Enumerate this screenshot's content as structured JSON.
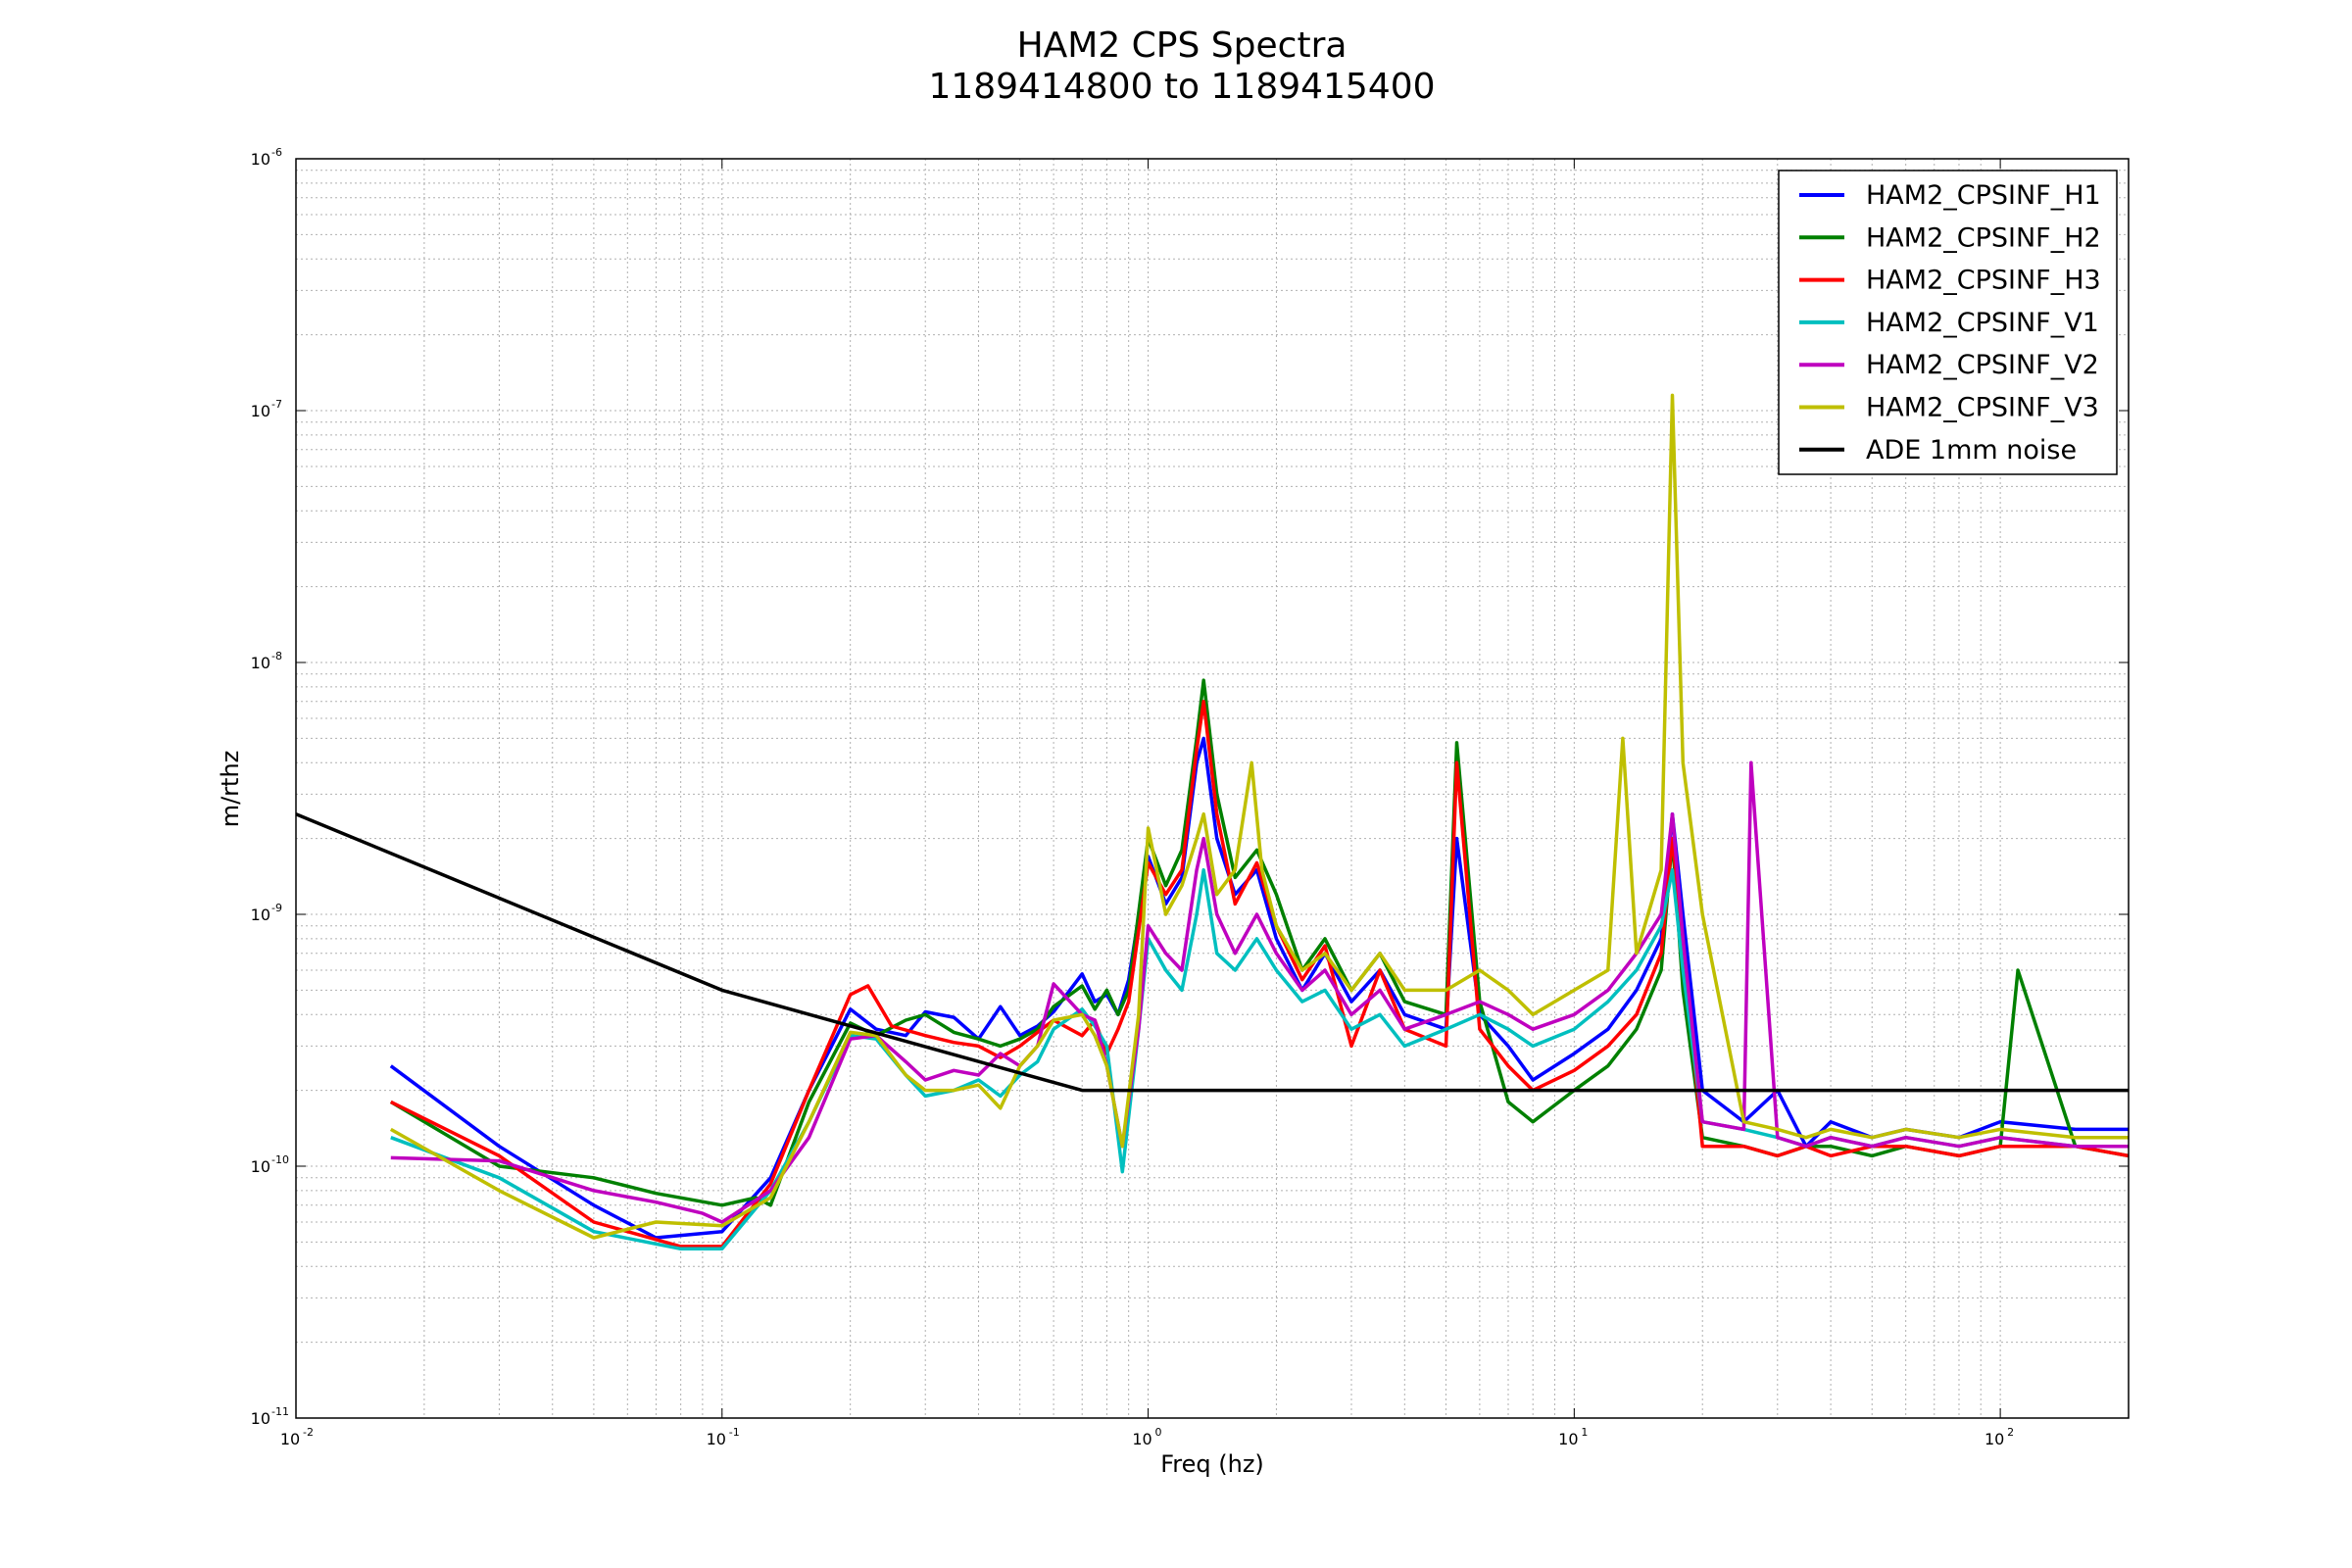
{
  "chart_data": {
    "type": "line",
    "title": "HAM2 CPS Spectra",
    "subtitle": "1189414800 to 1189415400",
    "xlabel": "Freq (hz)",
    "ylabel": "m/rthz",
    "xscale": "log",
    "yscale": "log",
    "xlim": [
      0.01,
      200
    ],
    "ylim": [
      1e-11,
      1e-06
    ],
    "grid": true,
    "legend_position": "top-right",
    "x_ticks": [
      {
        "base": "10",
        "exp": "-2",
        "value": 0.01
      },
      {
        "base": "10",
        "exp": "-1",
        "value": 0.1
      },
      {
        "base": "10",
        "exp": "0",
        "value": 1
      },
      {
        "base": "10",
        "exp": "1",
        "value": 10
      },
      {
        "base": "10",
        "exp": "2",
        "value": 100
      }
    ],
    "y_ticks": [
      {
        "base": "10",
        "exp": "-11",
        "value": 1e-11
      },
      {
        "base": "10",
        "exp": "-10",
        "value": 1e-10
      },
      {
        "base": "10",
        "exp": "-9",
        "value": 1e-09
      },
      {
        "base": "10",
        "exp": "-8",
        "value": 1e-08
      },
      {
        "base": "10",
        "exp": "-7",
        "value": 1e-07
      },
      {
        "base": "10",
        "exp": "-6",
        "value": 1e-06
      }
    ],
    "series": [
      {
        "name": "HAM2_CPSINF_H1",
        "color": "#0000ff",
        "x": [
          0.0167,
          0.03,
          0.05,
          0.07,
          0.1,
          0.13,
          0.16,
          0.2,
          0.23,
          0.27,
          0.3,
          0.35,
          0.4,
          0.45,
          0.5,
          0.55,
          0.6,
          0.7,
          0.75,
          0.8,
          0.85,
          0.9,
          1.0,
          1.1,
          1.2,
          1.3,
          1.35,
          1.45,
          1.6,
          1.8,
          2.0,
          2.3,
          2.6,
          3.0,
          3.5,
          4.0,
          5.0,
          5.3,
          6.0,
          7.0,
          8.0,
          10,
          12,
          14,
          16,
          17,
          18,
          20,
          25,
          30,
          35,
          40,
          50,
          60,
          80,
          100,
          150,
          200
        ],
        "y": [
          2.5e-10,
          1.2e-10,
          7e-11,
          5.2e-11,
          5.5e-11,
          9e-11,
          2e-10,
          4.2e-10,
          3.5e-10,
          3.3e-10,
          4.1e-10,
          3.9e-10,
          3.2e-10,
          4.3e-10,
          3.3e-10,
          3.6e-10,
          4.1e-10,
          5.8e-10,
          4.5e-10,
          4.8e-10,
          4e-10,
          5.5e-10,
          1.7e-09,
          1.1e-09,
          1.4e-09,
          4e-09,
          5e-09,
          2e-09,
          1.2e-09,
          1.5e-09,
          8e-10,
          5e-10,
          7e-10,
          4.5e-10,
          6e-10,
          4e-10,
          3.5e-10,
          2e-09,
          4e-10,
          3e-10,
          2.2e-10,
          2.8e-10,
          3.5e-10,
          5e-10,
          8e-10,
          2.5e-09,
          1e-09,
          2e-10,
          1.5e-10,
          2e-10,
          1.2e-10,
          1.5e-10,
          1.3e-10,
          1.4e-10,
          1.3e-10,
          1.5e-10,
          1.4e-10,
          1.4e-10
        ]
      },
      {
        "name": "HAM2_CPSINF_H2",
        "color": "#008000",
        "x": [
          0.0167,
          0.03,
          0.05,
          0.07,
          0.1,
          0.12,
          0.13,
          0.16,
          0.2,
          0.23,
          0.27,
          0.3,
          0.35,
          0.4,
          0.45,
          0.5,
          0.55,
          0.6,
          0.7,
          0.75,
          0.8,
          0.85,
          0.9,
          1.0,
          1.1,
          1.2,
          1.3,
          1.35,
          1.45,
          1.6,
          1.8,
          2.0,
          2.3,
          2.6,
          3.0,
          3.5,
          4.0,
          5.0,
          5.3,
          6.0,
          7.0,
          8.0,
          10,
          12,
          14,
          16,
          17,
          18,
          20,
          25,
          30,
          35,
          40,
          50,
          60,
          80,
          100,
          110,
          150,
          200
        ],
        "y": [
          1.8e-10,
          1e-10,
          9e-11,
          7.8e-11,
          7e-11,
          7.5e-11,
          7e-11,
          1.8e-10,
          3.7e-10,
          3.3e-10,
          3.8e-10,
          4e-10,
          3.4e-10,
          3.2e-10,
          3e-10,
          3.2e-10,
          3.5e-10,
          4.3e-10,
          5.2e-10,
          4.2e-10,
          5e-10,
          4e-10,
          5e-10,
          2e-09,
          1.3e-09,
          1.8e-09,
          5e-09,
          8.5e-09,
          3e-09,
          1.4e-09,
          1.8e-09,
          1.2e-09,
          6e-10,
          8e-10,
          5e-10,
          7e-10,
          4.5e-10,
          4e-10,
          4.8e-09,
          4.5e-10,
          1.8e-10,
          1.5e-10,
          2e-10,
          2.5e-10,
          3.5e-10,
          6e-10,
          2e-09,
          5e-10,
          1.3e-10,
          1.2e-10,
          1.1e-10,
          1.2e-10,
          1.2e-10,
          1.1e-10,
          1.2e-10,
          1.1e-10,
          1.2e-10,
          6e-10,
          1.2e-10,
          1.1e-10
        ]
      },
      {
        "name": "HAM2_CPSINF_H3",
        "color": "#ff0000",
        "x": [
          0.0167,
          0.03,
          0.05,
          0.08,
          0.1,
          0.13,
          0.16,
          0.2,
          0.22,
          0.25,
          0.3,
          0.35,
          0.4,
          0.45,
          0.5,
          0.55,
          0.6,
          0.7,
          0.75,
          0.8,
          0.85,
          0.9,
          1.0,
          1.1,
          1.2,
          1.3,
          1.35,
          1.45,
          1.6,
          1.8,
          2.0,
          2.3,
          2.6,
          3.0,
          3.5,
          4.0,
          5.0,
          5.3,
          6.0,
          7.0,
          8.0,
          10,
          12,
          14,
          16,
          17,
          18,
          20,
          25,
          30,
          35,
          40,
          50,
          60,
          80,
          100,
          150,
          200
        ],
        "y": [
          1.8e-10,
          1.1e-10,
          6e-11,
          4.8e-11,
          4.8e-11,
          8.5e-11,
          2e-10,
          4.8e-10,
          5.2e-10,
          3.6e-10,
          3.3e-10,
          3.1e-10,
          3e-10,
          2.7e-10,
          3e-10,
          3.4e-10,
          3.8e-10,
          3.3e-10,
          3.8e-10,
          2.8e-10,
          3.5e-10,
          4.5e-10,
          1.6e-09,
          1.2e-09,
          1.5e-09,
          4.5e-09,
          7e-09,
          2.5e-09,
          1.1e-09,
          1.6e-09,
          9e-10,
          5.5e-10,
          7.5e-10,
          3e-10,
          6e-10,
          3.5e-10,
          3e-10,
          4e-09,
          3.5e-10,
          2.5e-10,
          2e-10,
          2.4e-10,
          3e-10,
          4e-10,
          7e-10,
          2e-09,
          8e-10,
          1.2e-10,
          1.2e-10,
          1.1e-10,
          1.2e-10,
          1.1e-10,
          1.2e-10,
          1.2e-10,
          1.1e-10,
          1.2e-10,
          1.2e-10,
          1.1e-10
        ]
      },
      {
        "name": "HAM2_CPSINF_V1",
        "color": "#00bfbf",
        "x": [
          0.0167,
          0.03,
          0.05,
          0.08,
          0.1,
          0.13,
          0.16,
          0.2,
          0.23,
          0.27,
          0.3,
          0.35,
          0.4,
          0.45,
          0.5,
          0.55,
          0.6,
          0.7,
          0.75,
          0.8,
          0.87,
          0.95,
          1.0,
          1.1,
          1.2,
          1.3,
          1.35,
          1.45,
          1.6,
          1.8,
          2.0,
          2.3,
          2.6,
          3.0,
          3.5,
          4.0,
          5.0,
          6.0,
          7.0,
          8.0,
          10,
          12,
          14,
          16,
          17,
          18,
          20,
          25,
          30,
          35,
          40,
          50,
          60,
          80,
          100,
          150,
          200
        ],
        "y": [
          1.3e-10,
          9e-11,
          5.5e-11,
          4.7e-11,
          4.7e-11,
          8e-11,
          1.5e-10,
          3.3e-10,
          3.2e-10,
          2.3e-10,
          1.9e-10,
          2e-10,
          2.2e-10,
          1.9e-10,
          2.3e-10,
          2.6e-10,
          3.5e-10,
          4.2e-10,
          3.6e-10,
          3e-10,
          9.5e-11,
          3.5e-10,
          8e-10,
          6e-10,
          5e-10,
          1e-09,
          1.5e-09,
          7e-10,
          6e-10,
          8e-10,
          6e-10,
          4.5e-10,
          5e-10,
          3.5e-10,
          4e-10,
          3e-10,
          3.5e-10,
          4e-10,
          3.5e-10,
          3e-10,
          3.5e-10,
          4.5e-10,
          6e-10,
          9e-10,
          1.5e-09,
          6e-10,
          1.5e-10,
          1.4e-10,
          1.3e-10,
          1.2e-10,
          1.3e-10,
          1.2e-10,
          1.3e-10,
          1.2e-10,
          1.3e-10,
          1.2e-10,
          1.2e-10
        ]
      },
      {
        "name": "HAM2_CPSINF_V2",
        "color": "#bf00bf",
        "x": [
          0.0167,
          0.03,
          0.05,
          0.07,
          0.09,
          0.1,
          0.13,
          0.16,
          0.2,
          0.23,
          0.27,
          0.3,
          0.35,
          0.4,
          0.45,
          0.5,
          0.55,
          0.6,
          0.7,
          0.75,
          0.8,
          0.87,
          0.95,
          1.0,
          1.1,
          1.2,
          1.3,
          1.35,
          1.45,
          1.6,
          1.8,
          2.0,
          2.3,
          2.6,
          3.0,
          3.5,
          4.0,
          5.0,
          6.0,
          7.0,
          8.0,
          10,
          12,
          14,
          16,
          17,
          18,
          20,
          25,
          26,
          30,
          35,
          40,
          50,
          60,
          80,
          100,
          150,
          200
        ],
        "y": [
          1.08e-10,
          1.05e-10,
          8e-11,
          7.2e-11,
          6.5e-11,
          6e-11,
          8e-11,
          1.3e-10,
          3.2e-10,
          3.3e-10,
          2.6e-10,
          2.2e-10,
          2.4e-10,
          2.3e-10,
          2.8e-10,
          2.5e-10,
          3e-10,
          5.3e-10,
          4e-10,
          3.8e-10,
          2.5e-10,
          1.2e-10,
          3.5e-10,
          9e-10,
          7e-10,
          6e-10,
          1.5e-09,
          2e-09,
          1e-09,
          7e-10,
          1e-09,
          7e-10,
          5e-10,
          6e-10,
          4e-10,
          5e-10,
          3.5e-10,
          4e-10,
          4.5e-10,
          4e-10,
          3.5e-10,
          4e-10,
          5e-10,
          7e-10,
          1e-09,
          2.5e-09,
          8e-10,
          1.5e-10,
          1.4e-10,
          4e-09,
          1.3e-10,
          1.2e-10,
          1.3e-10,
          1.2e-10,
          1.3e-10,
          1.2e-10,
          1.3e-10,
          1.2e-10,
          1.2e-10
        ]
      },
      {
        "name": "HAM2_CPSINF_V3",
        "color": "#bfbf00",
        "x": [
          0.0167,
          0.03,
          0.05,
          0.07,
          0.1,
          0.13,
          0.16,
          0.2,
          0.23,
          0.27,
          0.3,
          0.35,
          0.4,
          0.45,
          0.5,
          0.55,
          0.6,
          0.7,
          0.75,
          0.8,
          0.87,
          0.95,
          1.0,
          1.1,
          1.2,
          1.3,
          1.35,
          1.45,
          1.6,
          1.75,
          1.85,
          2.0,
          2.3,
          2.6,
          3.0,
          3.5,
          4.0,
          5.0,
          6.0,
          7.0,
          8.0,
          10,
          12,
          13,
          14,
          16,
          17,
          18,
          20,
          25,
          30,
          35,
          40,
          50,
          60,
          80,
          100,
          150,
          200
        ],
        "y": [
          1.4e-10,
          8e-11,
          5.2e-11,
          6e-11,
          5.8e-11,
          7.5e-11,
          1.5e-10,
          3.4e-10,
          3.3e-10,
          2.3e-10,
          2e-10,
          2e-10,
          2.1e-10,
          1.7e-10,
          2.5e-10,
          3e-10,
          3.8e-10,
          4e-10,
          3.3e-10,
          2.5e-10,
          1.2e-10,
          4e-10,
          2.2e-09,
          1e-09,
          1.3e-09,
          2e-09,
          2.5e-09,
          1.2e-09,
          1.5e-09,
          4e-09,
          1.5e-09,
          9e-10,
          6e-10,
          7e-10,
          5e-10,
          7e-10,
          5e-10,
          5e-10,
          6e-10,
          5e-10,
          4e-10,
          5e-10,
          6e-10,
          5e-09,
          7e-10,
          1.5e-09,
          1.15e-07,
          4e-09,
          1e-09,
          1.5e-10,
          1.4e-10,
          1.3e-10,
          1.4e-10,
          1.3e-10,
          1.4e-10,
          1.3e-10,
          1.4e-10,
          1.3e-10,
          1.3e-10
        ]
      },
      {
        "name": "ADE 1mm noise",
        "color": "#000000",
        "x": [
          0.01,
          0.1,
          0.7,
          200
        ],
        "y": [
          2.5e-09,
          5e-10,
          2e-10,
          2e-10
        ]
      }
    ]
  }
}
